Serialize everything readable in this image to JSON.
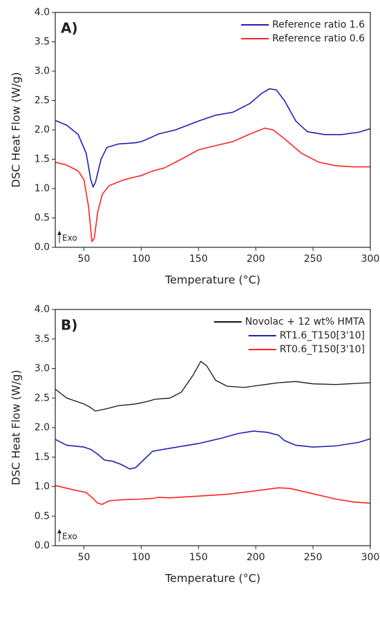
{
  "chart_data": [
    {
      "type": "line",
      "title": "A)",
      "x_label": "Temperature (°C)",
      "y_label": "DSC Heat Flow (W/g)",
      "annotation": "Exo",
      "xlim": [
        25,
        300
      ],
      "xticks": [
        50,
        100,
        150,
        200,
        250,
        300
      ],
      "ylim": [
        0,
        4
      ],
      "yticks": [
        {
          "value": 0,
          "label": "0.0"
        },
        0.5,
        {
          "value": 1,
          "label": "1.0"
        },
        1.5,
        {
          "value": 2,
          "label": "2.0"
        },
        2.5,
        {
          "value": 3,
          "label": "3.0"
        },
        3.5,
        {
          "value": 4,
          "label": "4.0"
        }
      ],
      "legend": "upper right",
      "series": [
        {
          "name": "Reference ratio 1.6",
          "color": "#1f1fb4",
          "x": [
            25,
            35,
            45,
            52,
            56,
            58,
            60,
            65,
            70,
            80,
            95,
            100,
            105,
            115,
            130,
            150,
            165,
            180,
            195,
            205,
            212,
            218,
            225,
            235,
            245,
            260,
            275,
            290,
            300
          ],
          "values": [
            2.16,
            2.08,
            1.92,
            1.6,
            1.15,
            1.03,
            1.1,
            1.5,
            1.7,
            1.76,
            1.78,
            1.8,
            1.84,
            1.93,
            2.0,
            2.15,
            2.25,
            2.3,
            2.45,
            2.62,
            2.7,
            2.68,
            2.5,
            2.15,
            1.97,
            1.92,
            1.92,
            1.96,
            2.02
          ]
        },
        {
          "name": "Reference ratio 0.6",
          "color": "#ff2020",
          "x": [
            25,
            35,
            45,
            50,
            54,
            57,
            59,
            62,
            66,
            72,
            85,
            95,
            100,
            110,
            120,
            135,
            150,
            165,
            180,
            195,
            208,
            215,
            225,
            240,
            255,
            270,
            285,
            300
          ],
          "values": [
            1.45,
            1.4,
            1.3,
            1.15,
            0.7,
            0.1,
            0.15,
            0.6,
            0.9,
            1.05,
            1.15,
            1.2,
            1.22,
            1.3,
            1.35,
            1.5,
            1.66,
            1.73,
            1.8,
            1.93,
            2.03,
            2.0,
            1.85,
            1.6,
            1.45,
            1.39,
            1.37,
            1.37
          ]
        }
      ]
    },
    {
      "type": "line",
      "title": "B)",
      "x_label": "Temperature (°C)",
      "y_label": "DSC Heat Flow (W/g)",
      "annotation": "Exo",
      "xlim": [
        25,
        300
      ],
      "xticks": [
        50,
        100,
        150,
        200,
        250,
        300
      ],
      "ylim": [
        0,
        4
      ],
      "yticks": [
        {
          "value": 0,
          "label": "0.0"
        },
        0.5,
        {
          "value": 1,
          "label": "1.0"
        },
        1.5,
        {
          "value": 2,
          "label": "2.0"
        },
        2.5,
        {
          "value": 3,
          "label": "3.0"
        },
        3.5,
        {
          "value": 4,
          "label": "4.0"
        }
      ],
      "legend": "upper right",
      "series": [
        {
          "name": "Novolac + 12 wt% HMTA",
          "color": "#111111",
          "x": [
            25,
            35,
            50,
            55,
            60,
            70,
            80,
            95,
            105,
            112,
            125,
            135,
            145,
            152,
            157,
            165,
            175,
            190,
            205,
            220,
            235,
            250,
            270,
            300
          ],
          "values": [
            2.65,
            2.5,
            2.4,
            2.35,
            2.28,
            2.32,
            2.37,
            2.4,
            2.44,
            2.48,
            2.5,
            2.6,
            2.88,
            3.12,
            3.05,
            2.8,
            2.7,
            2.68,
            2.72,
            2.76,
            2.78,
            2.74,
            2.73,
            2.76
          ]
        },
        {
          "name": "RT1.6_T150[3'10]",
          "color": "#1f1fb4",
          "x": [
            25,
            35,
            50,
            56,
            62,
            68,
            75,
            82,
            90,
            95,
            102,
            110,
            125,
            150,
            170,
            185,
            198,
            210,
            220,
            225,
            235,
            250,
            270,
            290,
            300
          ],
          "values": [
            1.8,
            1.7,
            1.67,
            1.63,
            1.55,
            1.45,
            1.43,
            1.38,
            1.3,
            1.32,
            1.45,
            1.6,
            1.65,
            1.73,
            1.82,
            1.9,
            1.94,
            1.92,
            1.87,
            1.78,
            1.7,
            1.67,
            1.69,
            1.75,
            1.81
          ]
        },
        {
          "name": "RT0.6_T150[3'10]",
          "color": "#ff2020",
          "x": [
            25,
            40,
            52,
            58,
            62,
            66,
            72,
            85,
            100,
            110,
            115,
            125,
            150,
            175,
            200,
            220,
            230,
            250,
            270,
            285,
            300
          ],
          "values": [
            1.02,
            0.95,
            0.9,
            0.8,
            0.72,
            0.7,
            0.76,
            0.78,
            0.79,
            0.8,
            0.82,
            0.81,
            0.84,
            0.87,
            0.93,
            0.98,
            0.97,
            0.88,
            0.79,
            0.74,
            0.72
          ]
        }
      ]
    }
  ]
}
